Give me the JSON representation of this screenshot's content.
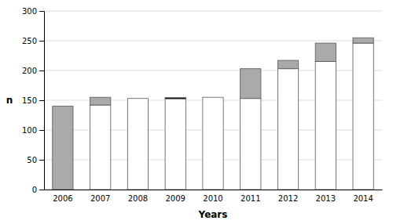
{
  "chart_data": {
    "type": "bar",
    "categories": [
      "2006",
      "2007",
      "2008",
      "2009",
      "2010",
      "2011",
      "2012",
      "2013",
      "2014"
    ],
    "series": [
      {
        "color": "#ffffff",
        "values": [
          0,
          142,
          153,
          153,
          155,
          153,
          203,
          215,
          246
        ]
      },
      {
        "color": "#aaaaaa",
        "values": [
          140,
          13,
          0,
          1.5,
          0,
          50,
          14,
          31,
          9
        ]
      },
      {
        "color": "#222222",
        "values": [
          null,
          null,
          null,
          2,
          null,
          null,
          null,
          null,
          null
        ],
        "bottom": [
          null,
          null,
          null,
          152,
          null,
          null,
          null,
          null,
          null
        ]
      }
    ],
    "stacked": true,
    "xlabel": "Years",
    "ylabel": "n",
    "ylim": [
      0,
      300
    ],
    "yticks": [
      0,
      50,
      100,
      150,
      200,
      250,
      300
    ],
    "grid": true
  }
}
